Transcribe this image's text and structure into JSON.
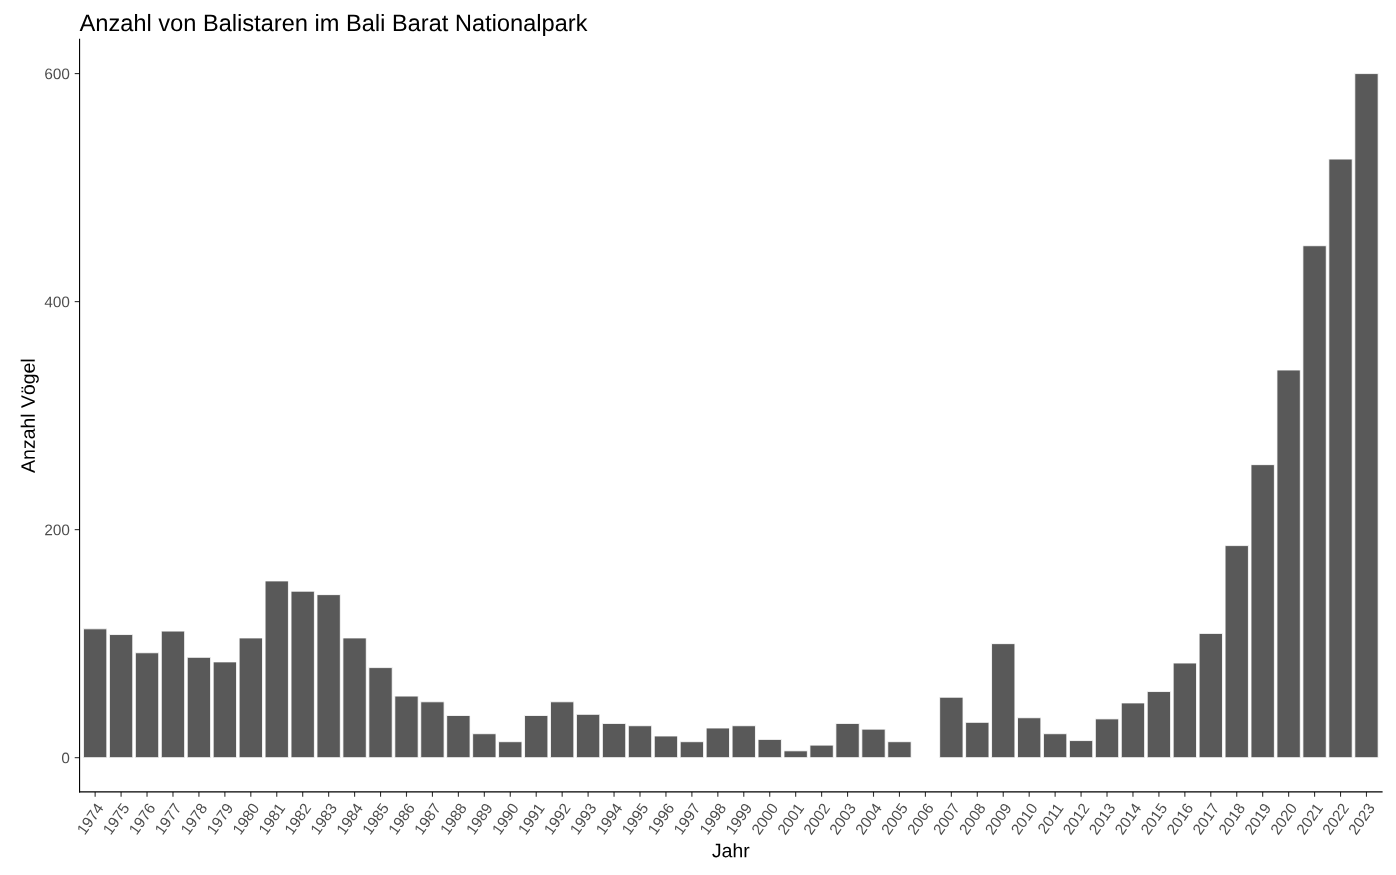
{
  "chart_data": {
    "type": "bar",
    "title": "Anzahl von Balistaren im Bali Barat Nationalpark",
    "xlabel": "Jahr",
    "ylabel": "Anzahl Vögel",
    "categories": [
      "1974",
      "1975",
      "1976",
      "1977",
      "1978",
      "1979",
      "1980",
      "1981",
      "1982",
      "1983",
      "1984",
      "1985",
      "1986",
      "1987",
      "1988",
      "1989",
      "1990",
      "1991",
      "1992",
      "1993",
      "1994",
      "1995",
      "1996",
      "1997",
      "1998",
      "1999",
      "2000",
      "2001",
      "2002",
      "2003",
      "2004",
      "2005",
      "2006",
      "2007",
      "2008",
      "2009",
      "2010",
      "2011",
      "2012",
      "2013",
      "2014",
      "2015",
      "2016",
      "2017",
      "2018",
      "2019",
      "2020",
      "2021",
      "2022",
      "2023"
    ],
    "values": [
      113,
      108,
      92,
      111,
      88,
      84,
      105,
      155,
      146,
      143,
      105,
      79,
      54,
      49,
      37,
      21,
      14,
      37,
      49,
      38,
      30,
      28,
      19,
      14,
      26,
      28,
      16,
      6,
      11,
      30,
      25,
      14,
      null,
      53,
      31,
      100,
      35,
      21,
      15,
      34,
      48,
      58,
      83,
      109,
      186,
      257,
      340,
      449,
      525,
      600
    ],
    "color": "#595959",
    "ylim": [
      -30,
      630
    ],
    "yticks": [
      0,
      200,
      400,
      600
    ],
    "grid": false
  }
}
